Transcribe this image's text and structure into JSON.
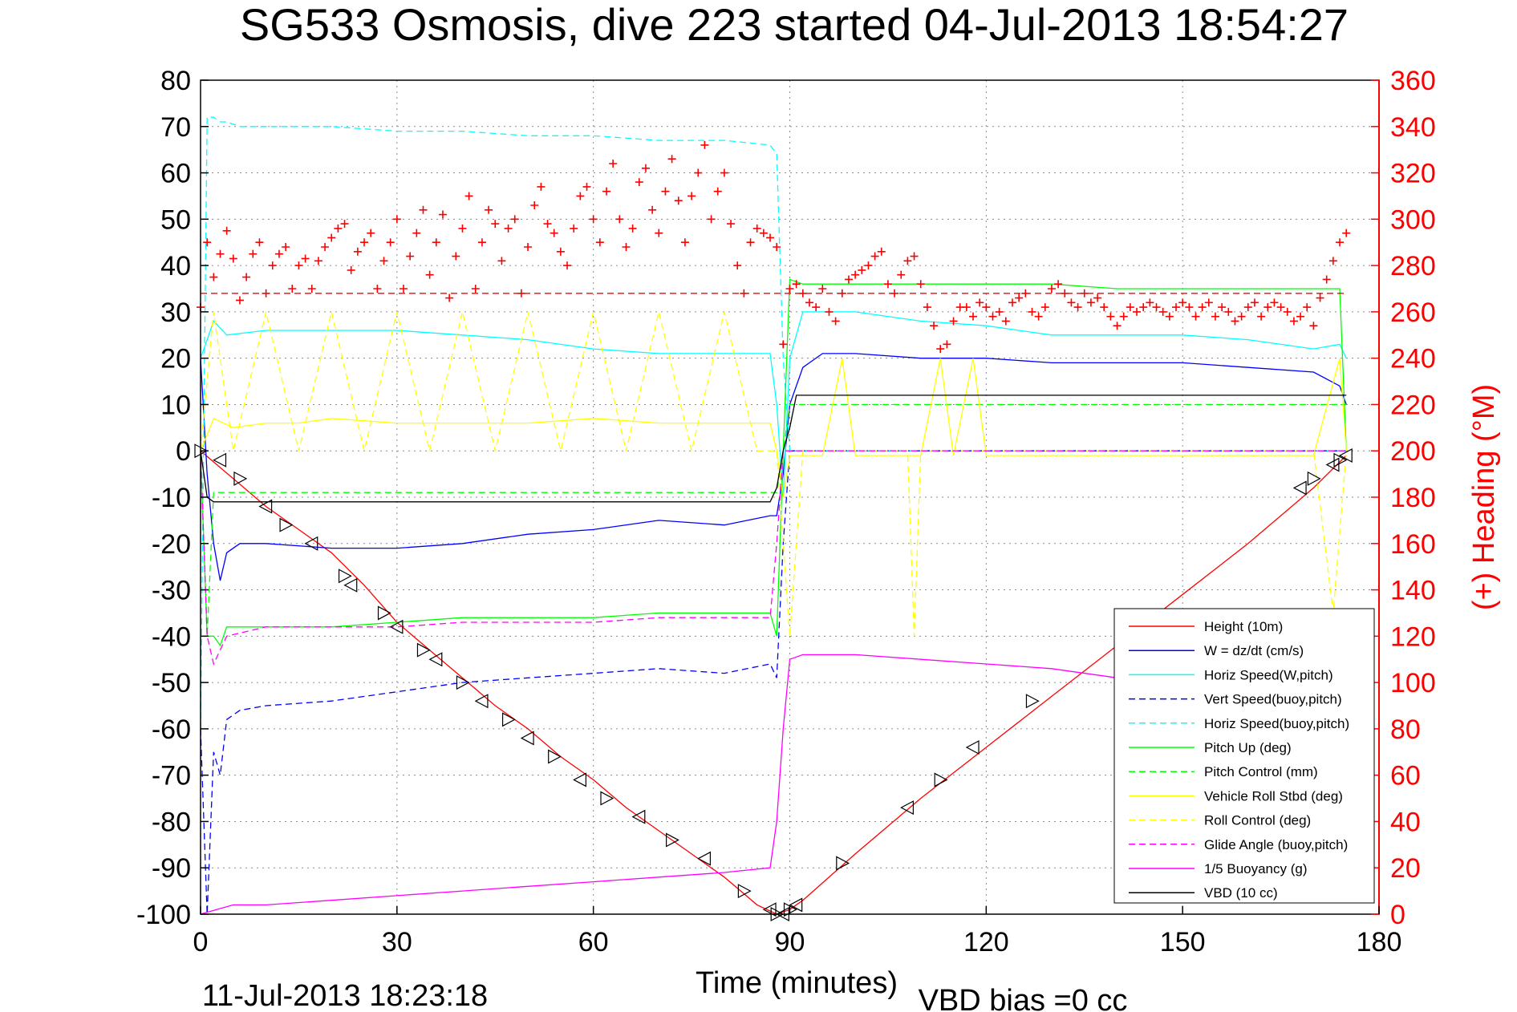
{
  "chart_data": {
    "type": "line",
    "title": "SG533 Osmosis, dive 223 started 04-Jul-2013 18:54:27",
    "xlabel": "Time (minutes)",
    "ylabel": "",
    "ylabel_right": "(+) Heading (°M)",
    "footer_left": "11-Jul-2013 18:23:18",
    "footer_right": "VBD bias =0 cc",
    "xlim": [
      0,
      180
    ],
    "ylim": [
      -100,
      80
    ],
    "ylim_right": [
      0,
      360
    ],
    "grid": true,
    "legend_position": "bottom-right",
    "x_ticks": [
      "0",
      "30",
      "60",
      "90",
      "120",
      "150",
      "180"
    ],
    "y_ticks": [
      "80",
      "70",
      "60",
      "50",
      "40",
      "30",
      "20",
      "10",
      "0",
      "-10",
      "-20",
      "-30",
      "-40",
      "-50",
      "-60",
      "-70",
      "-80",
      "-90",
      "-100"
    ],
    "y_right_ticks": [
      "360",
      "340",
      "320",
      "300",
      "280",
      "260",
      "240",
      "220",
      "200",
      "180",
      "160",
      "140",
      "120",
      "100",
      "80",
      "60",
      "40",
      "20",
      "0"
    ],
    "series": [
      {
        "name": "Height (10m)",
        "color": "#ff0000",
        "style": "solid",
        "axis": "left",
        "x": [
          0,
          5,
          10,
          15,
          20,
          25,
          30,
          35,
          40,
          45,
          50,
          55,
          60,
          65,
          70,
          75,
          80,
          85,
          88,
          90,
          92,
          100,
          110,
          120,
          130,
          140,
          150,
          160,
          170,
          175
        ],
        "y": [
          0,
          -6,
          -12,
          -17,
          -22,
          -29,
          -37,
          -43,
          -49,
          -55,
          -60,
          -66,
          -71,
          -77,
          -82,
          -87,
          -92,
          -98,
          -100,
          -99,
          -97,
          -87,
          -75,
          -64,
          -53,
          -42,
          -31,
          -20,
          -8,
          -1
        ]
      },
      {
        "name": "W = dz/dt (cm/s)",
        "color": "#0000ff",
        "style": "solid",
        "axis": "left",
        "x": [
          0,
          1,
          2,
          3,
          4,
          6,
          10,
          20,
          30,
          40,
          50,
          60,
          70,
          80,
          87,
          88,
          89,
          90,
          92,
          95,
          100,
          110,
          120,
          130,
          140,
          150,
          160,
          170,
          174,
          175
        ],
        "y": [
          20,
          -5,
          -20,
          -28,
          -22,
          -20,
          -20,
          -21,
          -21,
          -20,
          -18,
          -17,
          -15,
          -16,
          -14,
          -14,
          -5,
          10,
          18,
          21,
          21,
          20,
          20,
          19,
          19,
          19,
          18,
          17,
          14,
          10
        ]
      },
      {
        "name": "Horiz Speed(W,pitch)",
        "color": "#00ffff",
        "style": "solid",
        "axis": "left",
        "x": [
          0,
          1,
          2,
          4,
          10,
          20,
          30,
          40,
          50,
          60,
          70,
          80,
          87,
          88,
          89,
          90,
          92,
          100,
          110,
          120,
          130,
          140,
          150,
          160,
          170,
          174,
          175
        ],
        "y": [
          20,
          24,
          28,
          25,
          26,
          26,
          26,
          25,
          24,
          22,
          21,
          21,
          21,
          10,
          -10,
          20,
          30,
          30,
          28,
          27,
          25,
          25,
          25,
          24,
          22,
          23,
          20
        ]
      },
      {
        "name": "Vert Speed(buoy,pitch)",
        "color": "#0000ff",
        "style": "dashed",
        "axis": "left",
        "x": [
          0,
          1,
          2,
          3,
          4,
          6,
          10,
          20,
          30,
          40,
          50,
          60,
          70,
          80,
          87,
          88,
          89,
          90,
          95,
          100,
          110,
          120,
          130,
          140,
          150,
          160,
          170,
          175
        ],
        "y": [
          -60,
          -100,
          -65,
          -70,
          -58,
          -56,
          -55,
          -54,
          -52,
          -50,
          -49,
          -48,
          -47,
          -48,
          -46,
          -49,
          -20,
          0,
          0,
          0,
          0,
          0,
          0,
          0,
          0,
          0,
          0,
          0
        ]
      },
      {
        "name": "Horiz Speed(buoy,pitch)",
        "color": "#00ffff",
        "style": "dashed",
        "axis": "left",
        "x": [
          0,
          1,
          2,
          3,
          4,
          6,
          10,
          20,
          30,
          40,
          50,
          60,
          70,
          80,
          87,
          88,
          89,
          90,
          95,
          100,
          110,
          120,
          130,
          140,
          150,
          160,
          170,
          175
        ],
        "y": [
          -60,
          72,
          72,
          71,
          71,
          70,
          70,
          70,
          69,
          69,
          68,
          68,
          67,
          67,
          66,
          64,
          20,
          0,
          0,
          0,
          0,
          0,
          0,
          0,
          0,
          0,
          0,
          0
        ]
      },
      {
        "name": "Pitch Up (deg)",
        "color": "#00ff00",
        "style": "solid",
        "axis": "left",
        "x": [
          0,
          1,
          2,
          3,
          4,
          10,
          20,
          30,
          40,
          50,
          60,
          70,
          80,
          87,
          88,
          89,
          90,
          92,
          100,
          110,
          120,
          130,
          140,
          150,
          160,
          170,
          174,
          175
        ],
        "y": [
          0,
          -40,
          -40,
          -42,
          -38,
          -38,
          -38,
          -37,
          -36,
          -36,
          -36,
          -35,
          -35,
          -35,
          -40,
          0,
          37,
          36,
          36,
          36,
          36,
          36,
          35,
          35,
          35,
          35,
          35,
          0
        ]
      },
      {
        "name": "Pitch Control (mm)",
        "color": "#00ff00",
        "style": "dashed",
        "axis": "left",
        "x": [
          0,
          1,
          2,
          4,
          10,
          20,
          30,
          40,
          50,
          60,
          70,
          80,
          87,
          88,
          89,
          90,
          92,
          100,
          120,
          140,
          160,
          175
        ],
        "y": [
          0,
          -40,
          -9,
          -9,
          -9,
          -9,
          -9,
          -9,
          -9,
          -9,
          -9,
          -9,
          -9,
          -9,
          0,
          10,
          10,
          10,
          10,
          10,
          10,
          10
        ]
      },
      {
        "name": "Vehicle Roll Stbd (deg)",
        "color": "#ffff00",
        "style": "solid",
        "axis": "left",
        "x": [
          0,
          2,
          5,
          10,
          15,
          20,
          30,
          40,
          50,
          60,
          70,
          80,
          87,
          88,
          89,
          90,
          95,
          98,
          100,
          110,
          113,
          115,
          118,
          120,
          130,
          140,
          150,
          160,
          170,
          174,
          175
        ],
        "y": [
          0,
          7,
          5,
          6,
          6,
          7,
          6,
          6,
          6,
          7,
          6,
          6,
          6,
          0,
          -10,
          -1,
          -1,
          20,
          -1,
          -1,
          20,
          -1,
          20,
          -1,
          -1,
          -1,
          -1,
          -1,
          -1,
          20,
          0
        ]
      },
      {
        "name": "Roll Control (deg)",
        "color": "#ffff00",
        "style": "dashed",
        "axis": "left",
        "x": [
          0,
          2,
          5,
          10,
          15,
          20,
          25,
          30,
          35,
          40,
          45,
          50,
          55,
          60,
          65,
          70,
          75,
          80,
          85,
          88,
          90,
          92,
          100,
          108,
          109,
          110,
          120,
          130,
          140,
          150,
          160,
          170,
          173,
          175
        ],
        "y": [
          0,
          30,
          0,
          30,
          0,
          30,
          0,
          30,
          0,
          30,
          0,
          30,
          0,
          30,
          0,
          30,
          0,
          30,
          0,
          0,
          -40,
          0,
          0,
          0,
          -40,
          0,
          0,
          0,
          0,
          0,
          0,
          0,
          -35,
          0
        ]
      },
      {
        "name": "Glide Angle (buoy,pitch)",
        "color": "#ff00ff",
        "style": "dashed",
        "axis": "left",
        "x": [
          0,
          1,
          2,
          4,
          10,
          20,
          30,
          40,
          50,
          60,
          70,
          80,
          87,
          88,
          89,
          90,
          92,
          100,
          120,
          140,
          160,
          175
        ],
        "y": [
          0,
          -40,
          -46,
          -40,
          -38,
          -38,
          -38,
          -37,
          -37,
          -37,
          -36,
          -36,
          -36,
          -20,
          0,
          0,
          0,
          0,
          0,
          0,
          0,
          0
        ]
      },
      {
        "name": "1/5 Buoyancy (g)",
        "color": "#ff00ff",
        "style": "solid",
        "axis": "left",
        "x": [
          0,
          5,
          10,
          20,
          30,
          40,
          50,
          60,
          70,
          80,
          87,
          88,
          89,
          90,
          92,
          100,
          110,
          120,
          130,
          140
        ],
        "y": [
          -100,
          -98,
          -98,
          -97,
          -96,
          -95,
          -94,
          -93,
          -92,
          -91,
          -90,
          -80,
          -60,
          -45,
          -44,
          -44,
          -45,
          -46,
          -47,
          -49
        ]
      },
      {
        "name": "VBD (10 cc)",
        "color": "#000000",
        "style": "solid",
        "axis": "left",
        "x": [
          0,
          1,
          2,
          10,
          20,
          30,
          40,
          50,
          60,
          70,
          80,
          87,
          88,
          89,
          90,
          91,
          100,
          110,
          120,
          130,
          140,
          150,
          160,
          170,
          175
        ],
        "y": [
          0,
          -10,
          -11,
          -11,
          -11,
          -11,
          -11,
          -11,
          -11,
          -11,
          -11,
          -11,
          -8,
          0,
          5,
          12,
          12,
          12,
          12,
          12,
          12,
          12,
          12,
          12,
          12
        ]
      },
      {
        "name": "",
        "color": "#ff0000",
        "style": "dashed",
        "axis": "right",
        "x": [
          0,
          175
        ],
        "y": [
          268,
          268
        ]
      },
      {
        "name": "",
        "color": "#ff0000",
        "style": "plus-markers",
        "axis": "right",
        "x": [
          0,
          1,
          2,
          3,
          4,
          5,
          6,
          7,
          8,
          9,
          10,
          11,
          12,
          13,
          14,
          15,
          16,
          17,
          18,
          19,
          20,
          21,
          22,
          23,
          24,
          25,
          26,
          27,
          28,
          29,
          30,
          31,
          32,
          33,
          34,
          35,
          36,
          37,
          38,
          39,
          40,
          41,
          42,
          43,
          44,
          45,
          46,
          47,
          48,
          49,
          50,
          51,
          52,
          53,
          54,
          55,
          56,
          57,
          58,
          59,
          60,
          61,
          62,
          63,
          64,
          65,
          66,
          67,
          68,
          69,
          70,
          71,
          72,
          73,
          74,
          75,
          76,
          77,
          78,
          79,
          80,
          81,
          82,
          83,
          84,
          85,
          86,
          87,
          88,
          89,
          90,
          91,
          92,
          93,
          94,
          95,
          96,
          97,
          98,
          99,
          100,
          101,
          102,
          103,
          104,
          105,
          106,
          107,
          108,
          109,
          110,
          111,
          112,
          113,
          114,
          115,
          116,
          117,
          118,
          119,
          120,
          121,
          122,
          123,
          124,
          125,
          126,
          127,
          128,
          129,
          130,
          131,
          132,
          133,
          134,
          135,
          136,
          137,
          138,
          139,
          140,
          141,
          142,
          143,
          144,
          145,
          146,
          147,
          148,
          149,
          150,
          151,
          152,
          153,
          154,
          155,
          156,
          157,
          158,
          159,
          160,
          161,
          162,
          163,
          164,
          165,
          166,
          167,
          168,
          169,
          170,
          171,
          172,
          173,
          174,
          175
        ],
        "y": [
          262,
          290,
          275,
          285,
          295,
          283,
          265,
          275,
          285,
          290,
          268,
          280,
          285,
          288,
          270,
          280,
          283,
          270,
          282,
          288,
          292,
          296,
          298,
          278,
          286,
          290,
          294,
          270,
          282,
          290,
          300,
          270,
          284,
          294,
          304,
          276,
          290,
          302,
          266,
          284,
          296,
          310,
          270,
          290,
          304,
          298,
          282,
          296,
          300,
          268,
          288,
          306,
          314,
          298,
          294,
          286,
          280,
          296,
          310,
          314,
          300,
          290,
          312,
          324,
          300,
          288,
          296,
          316,
          322,
          304,
          294,
          312,
          326,
          308,
          290,
          310,
          320,
          332,
          300,
          312,
          320,
          298,
          280,
          268,
          290,
          296,
          294,
          292,
          288,
          246,
          270,
          272,
          268,
          264,
          262,
          270,
          260,
          256,
          268,
          274,
          276,
          278,
          280,
          284,
          286,
          272,
          268,
          276,
          282,
          284,
          272,
          262,
          254,
          244,
          246,
          256,
          262,
          262,
          258,
          264,
          262,
          258,
          260,
          256,
          264,
          266,
          268,
          260,
          258,
          262,
          270,
          272,
          268,
          264,
          262,
          268,
          264,
          266,
          262,
          258,
          254,
          258,
          262,
          260,
          262,
          264,
          262,
          260,
          258,
          262,
          264,
          262,
          258,
          262,
          264,
          258,
          262,
          260,
          256,
          258,
          262,
          264,
          258,
          262,
          264,
          262,
          260,
          256,
          258,
          262,
          254,
          266,
          274,
          282,
          290,
          294
        ]
      }
    ],
    "markers": {
      "description": "triangle markers along Height trace",
      "color": "#000000",
      "x": [
        0,
        3,
        6,
        10,
        13,
        17,
        22,
        23,
        28,
        30,
        34,
        36,
        40,
        43,
        47,
        50,
        54,
        58,
        62,
        67,
        72,
        77,
        83,
        87,
        88,
        89,
        90,
        91,
        98,
        108,
        113,
        118,
        127,
        168,
        170,
        173,
        174,
        175
      ],
      "y": [
        0,
        -2,
        -6,
        -12,
        -16,
        -20,
        -27,
        -29,
        -35,
        -38,
        -43,
        -45,
        -50,
        -54,
        -58,
        -62,
        -66,
        -71,
        -75,
        -79,
        -84,
        -88,
        -95,
        -99,
        -100,
        -100,
        -99,
        -98,
        -89,
        -77,
        -71,
        -64,
        -54,
        -8,
        -6,
        -3,
        -2,
        -1
      ]
    }
  }
}
